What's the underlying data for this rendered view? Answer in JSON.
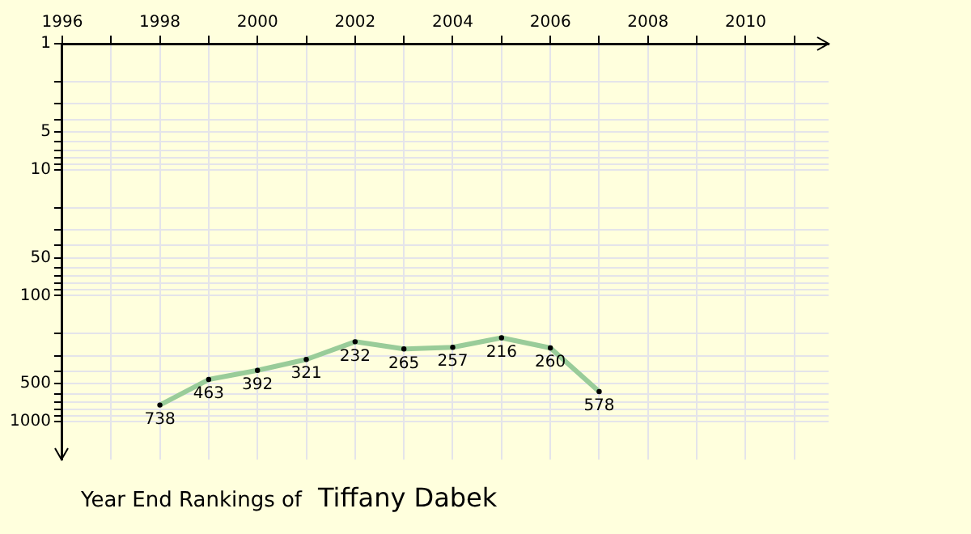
{
  "chart_data": {
    "type": "line",
    "title": "Year End Rankings of",
    "subtitle": "Tiffany Dabek",
    "x": [
      1998,
      1999,
      2000,
      2001,
      2002,
      2003,
      2004,
      2005,
      2006,
      2007
    ],
    "series": [
      {
        "color": "#99cc99",
        "values": [
          738,
          463,
          392,
          321,
          232,
          265,
          257,
          216,
          260,
          578
        ]
      }
    ],
    "data_labels": true,
    "marker": "circle",
    "log": "y",
    "grid": true,
    "legend": false,
    "xlim": [
      1996,
      2011.7
    ],
    "xticks": [
      1996,
      {
        "value": 1997,
        "label": null
      },
      1998,
      {
        "value": 1999,
        "label": null
      },
      2000,
      {
        "value": 2001,
        "label": null
      },
      2002,
      {
        "value": 2003,
        "label": null
      },
      2004,
      {
        "value": 2005,
        "label": null
      },
      2006,
      {
        "value": 2007,
        "label": null
      },
      2008,
      {
        "value": 2009,
        "label": null
      },
      2010,
      {
        "value": 2011,
        "label": null
      }
    ],
    "ylim": [
      2000,
      1
    ],
    "yticks": [
      1,
      {
        "value": 2,
        "label": null
      },
      {
        "value": 3,
        "label": null
      },
      {
        "value": 4,
        "label": null
      },
      5,
      {
        "value": 6,
        "label": null
      },
      {
        "value": 7,
        "label": null
      },
      {
        "value": 8,
        "label": null
      },
      {
        "value": 9,
        "label": null
      },
      10,
      {
        "value": 20,
        "label": null
      },
      {
        "value": 30,
        "label": null
      },
      {
        "value": 40,
        "label": null
      },
      50,
      {
        "value": 60,
        "label": null
      },
      {
        "value": 70,
        "label": null
      },
      {
        "value": 80,
        "label": null
      },
      {
        "value": 90,
        "label": null
      },
      100,
      {
        "value": 200,
        "label": null
      },
      {
        "value": 300,
        "label": null
      },
      {
        "value": 400,
        "label": null
      },
      500,
      {
        "value": 600,
        "label": null
      },
      {
        "value": 700,
        "label": null
      },
      {
        "value": 800,
        "label": null
      },
      {
        "value": 900,
        "label": null
      },
      1000
    ]
  }
}
